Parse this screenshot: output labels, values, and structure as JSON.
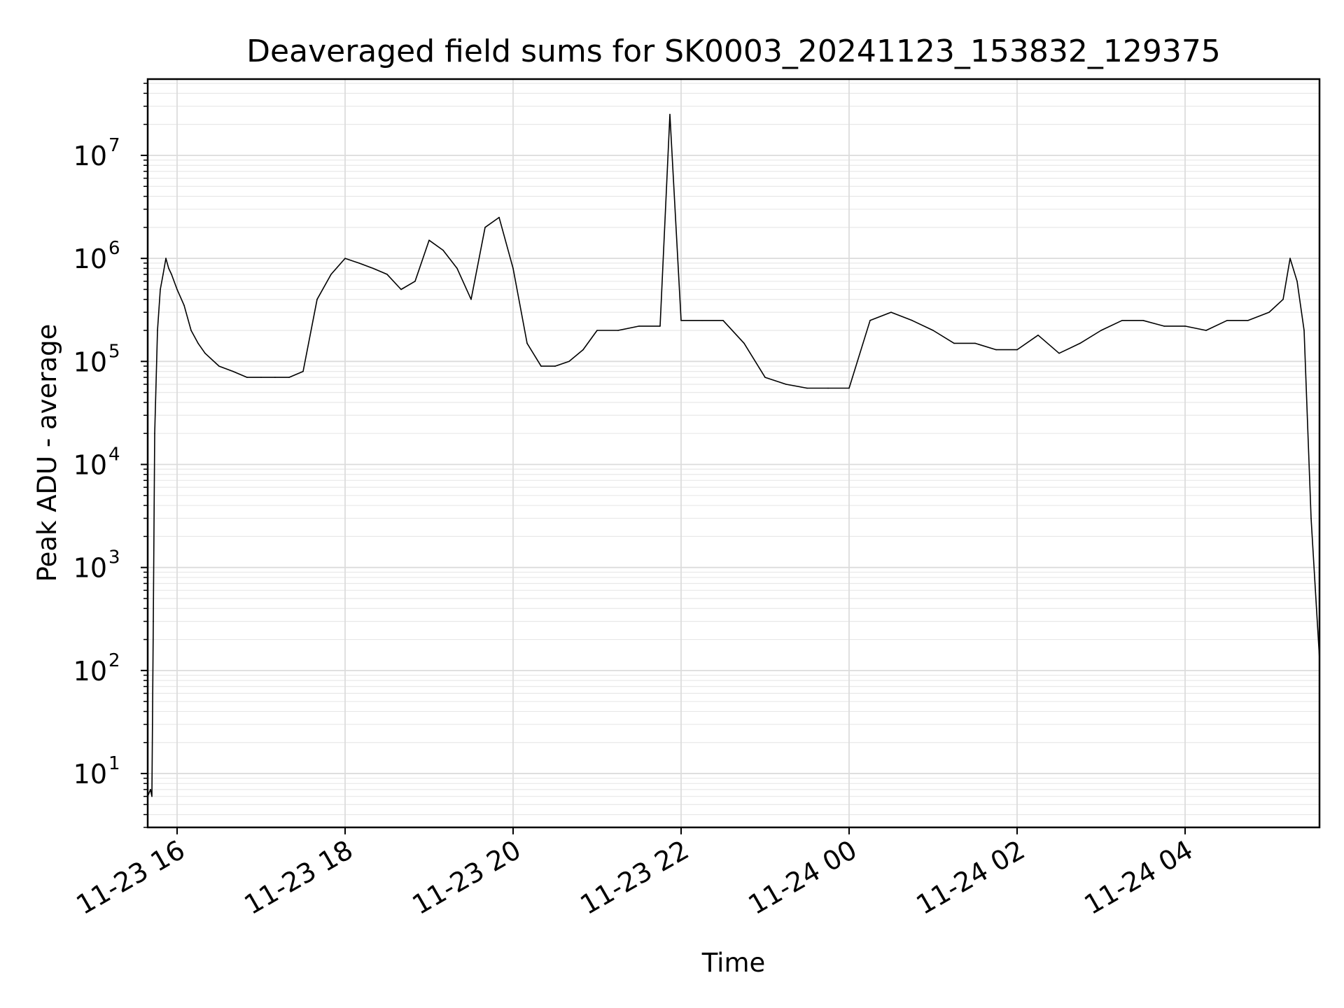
{
  "chart_data": {
    "type": "line",
    "title": "Deaveraged field sums for SK0003_20241123_153832_129375",
    "xlabel": "Time",
    "ylabel": "Peak ADU - average",
    "yscale": "log",
    "ylim": [
      3,
      55000000
    ],
    "xlim": [
      "2024-11-23 15:39",
      "2024-11-24 05:36"
    ],
    "grid": true,
    "legend": "none",
    "line_color": "#000000",
    "x_tick_labels": [
      "11-23 16",
      "11-23 18",
      "11-23 20",
      "11-23 22",
      "11-24 00",
      "11-24 02",
      "11-24 04"
    ],
    "x_ticks": [
      "2024-11-23 16:00",
      "2024-11-23 18:00",
      "2024-11-23 20:00",
      "2024-11-23 22:00",
      "2024-11-24 00:00",
      "2024-11-24 02:00",
      "2024-11-24 04:00"
    ],
    "y_tick_bases": [
      "10",
      "10",
      "10",
      "10",
      "10",
      "10",
      "10"
    ],
    "y_tick_exponents": [
      "1",
      "2",
      "3",
      "4",
      "5",
      "6",
      "7"
    ],
    "y_ticks": [
      10,
      100,
      1000,
      10000,
      100000,
      1000000,
      10000000
    ],
    "series": [
      {
        "x": [
          "2024-11-23 15:39",
          "2024-11-23 15:41",
          "2024-11-23 15:42",
          "2024-11-23 15:43",
          "2024-11-23 15:44",
          "2024-11-23 15:46",
          "2024-11-23 15:48",
          "2024-11-23 15:50",
          "2024-11-23 15:52",
          "2024-11-23 15:54",
          "2024-11-23 15:56",
          "2024-11-23 16:00",
          "2024-11-23 16:05",
          "2024-11-23 16:10",
          "2024-11-23 16:15",
          "2024-11-23 16:20",
          "2024-11-23 16:30",
          "2024-11-23 16:40",
          "2024-11-23 16:50",
          "2024-11-23 17:00",
          "2024-11-23 17:10",
          "2024-11-23 17:20",
          "2024-11-23 17:30",
          "2024-11-23 17:40",
          "2024-11-23 17:50",
          "2024-11-23 18:00",
          "2024-11-23 18:10",
          "2024-11-23 18:20",
          "2024-11-23 18:30",
          "2024-11-23 18:40",
          "2024-11-23 18:50",
          "2024-11-23 19:00",
          "2024-11-23 19:10",
          "2024-11-23 19:20",
          "2024-11-23 19:30",
          "2024-11-23 19:40",
          "2024-11-23 19:50",
          "2024-11-23 20:00",
          "2024-11-23 20:10",
          "2024-11-23 20:20",
          "2024-11-23 20:30",
          "2024-11-23 20:40",
          "2024-11-23 20:50",
          "2024-11-23 21:00",
          "2024-11-23 21:15",
          "2024-11-23 21:30",
          "2024-11-23 21:45",
          "2024-11-23 21:52",
          "2024-11-23 22:00",
          "2024-11-23 22:15",
          "2024-11-23 22:30",
          "2024-11-23 22:45",
          "2024-11-23 23:00",
          "2024-11-23 23:15",
          "2024-11-23 23:30",
          "2024-11-23 23:45",
          "2024-11-24 00:00",
          "2024-11-24 00:15",
          "2024-11-24 00:30",
          "2024-11-24 00:45",
          "2024-11-24 01:00",
          "2024-11-24 01:15",
          "2024-11-24 01:30",
          "2024-11-24 01:45",
          "2024-11-24 02:00",
          "2024-11-24 02:15",
          "2024-11-24 02:30",
          "2024-11-24 02:45",
          "2024-11-24 03:00",
          "2024-11-24 03:15",
          "2024-11-24 03:30",
          "2024-11-24 03:45",
          "2024-11-24 04:00",
          "2024-11-24 04:15",
          "2024-11-24 04:30",
          "2024-11-24 04:45",
          "2024-11-24 05:00",
          "2024-11-24 05:10",
          "2024-11-24 05:15",
          "2024-11-24 05:20",
          "2024-11-24 05:25",
          "2024-11-24 05:30",
          "2024-11-24 05:36"
        ],
        "y": [
          6,
          7,
          6,
          300,
          20000,
          200000,
          500000,
          700000,
          1000000,
          800000,
          700000,
          500000,
          350000,
          200000,
          150000,
          120000,
          90000,
          80000,
          70000,
          70000,
          70000,
          70000,
          80000,
          400000,
          700000,
          1000000,
          900000,
          800000,
          700000,
          500000,
          600000,
          1500000,
          1200000,
          800000,
          400000,
          2000000,
          2500000,
          800000,
          150000,
          90000,
          90000,
          100000,
          130000,
          200000,
          200000,
          220000,
          220000,
          25000000,
          250000,
          250000,
          250000,
          150000,
          70000,
          60000,
          55000,
          55000,
          55000,
          250000,
          300000,
          250000,
          200000,
          150000,
          150000,
          130000,
          130000,
          180000,
          120000,
          150000,
          200000,
          250000,
          250000,
          220000,
          220000,
          200000,
          250000,
          250000,
          300000,
          400000,
          1000000,
          600000,
          200000,
          3000,
          130
        ]
      }
    ]
  }
}
